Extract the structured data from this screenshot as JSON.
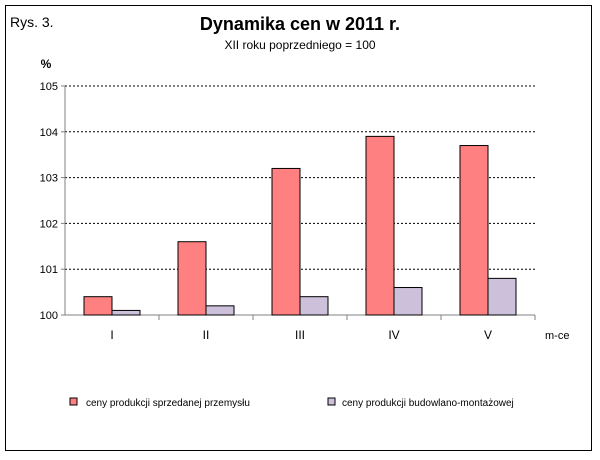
{
  "figure_label": "Rys. 3.",
  "colors": {
    "series1": "#ff8080",
    "series2": "#ccc0da",
    "bar_stroke": "#000000",
    "grid": "#000000",
    "axis": "#808080"
  },
  "chart_data": {
    "type": "bar",
    "title": "Dynamika cen w 2011 r.",
    "subtitle": "XII roku poprzedniego = 100",
    "ylabel": "%",
    "xlabel": "m-ce",
    "categories": [
      "I",
      "II",
      "III",
      "IV",
      "V"
    ],
    "ylim": [
      100,
      105
    ],
    "yticks": [
      "100",
      "101",
      "102",
      "103",
      "104",
      "105"
    ],
    "grid": "horizontal dashed",
    "legend_position": "bottom",
    "series": [
      {
        "name": "ceny produkcji sprzedanej przemysłu",
        "values": [
          100.4,
          101.6,
          103.2,
          103.9,
          103.7
        ]
      },
      {
        "name": "ceny produkcji budowlano-montażowej",
        "values": [
          100.1,
          100.2,
          100.4,
          100.6,
          100.8
        ]
      }
    ]
  }
}
